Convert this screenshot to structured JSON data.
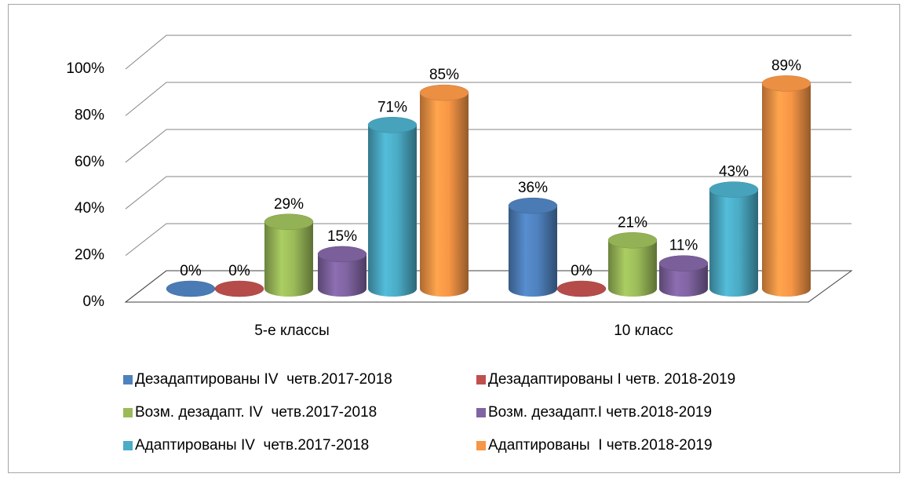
{
  "chart_data": {
    "type": "bar3d",
    "categories": [
      "5-е классы",
      "10 класс"
    ],
    "series": [
      {
        "name": "Дезадаптированы IV  четв.2017-2018",
        "color": "#4f81bd",
        "values": [
          0,
          36
        ],
        "value_labels": [
          "0%",
          "36%"
        ]
      },
      {
        "name": "Дезадаптированы I четв. 2018-2019",
        "color": "#c0504d",
        "values": [
          0,
          0
        ],
        "value_labels": [
          "0%",
          "0%"
        ]
      },
      {
        "name": "Возм. дезадапт. IV  четв.2017-2018",
        "color": "#9bbb59",
        "values": [
          29,
          21
        ],
        "value_labels": [
          "29%",
          "21%"
        ]
      },
      {
        "name": "Возм. дезадапт.I четв.2018-2019",
        "color": "#8064a2",
        "values": [
          15,
          11
        ],
        "value_labels": [
          "15%",
          "11%"
        ]
      },
      {
        "name": "Адаптированы IV  четв.2017-2018",
        "color": "#4bacc6",
        "values": [
          71,
          43
        ],
        "value_labels": [
          "71%",
          "43%"
        ]
      },
      {
        "name": "Адаптированы  I четв.2018-2019",
        "color": "#f79646",
        "values": [
          85,
          89
        ],
        "value_labels": [
          "85%",
          "89%"
        ]
      }
    ],
    "ylim": [
      0,
      100
    ],
    "yticks": [
      {
        "value": 0,
        "label": "0%"
      },
      {
        "value": 20,
        "label": "20%"
      },
      {
        "value": 40,
        "label": "40%"
      },
      {
        "value": 60,
        "label": "60%"
      },
      {
        "value": 80,
        "label": "80%"
      },
      {
        "value": 100,
        "label": "100%"
      }
    ],
    "grid": true,
    "legend": "bottom"
  }
}
